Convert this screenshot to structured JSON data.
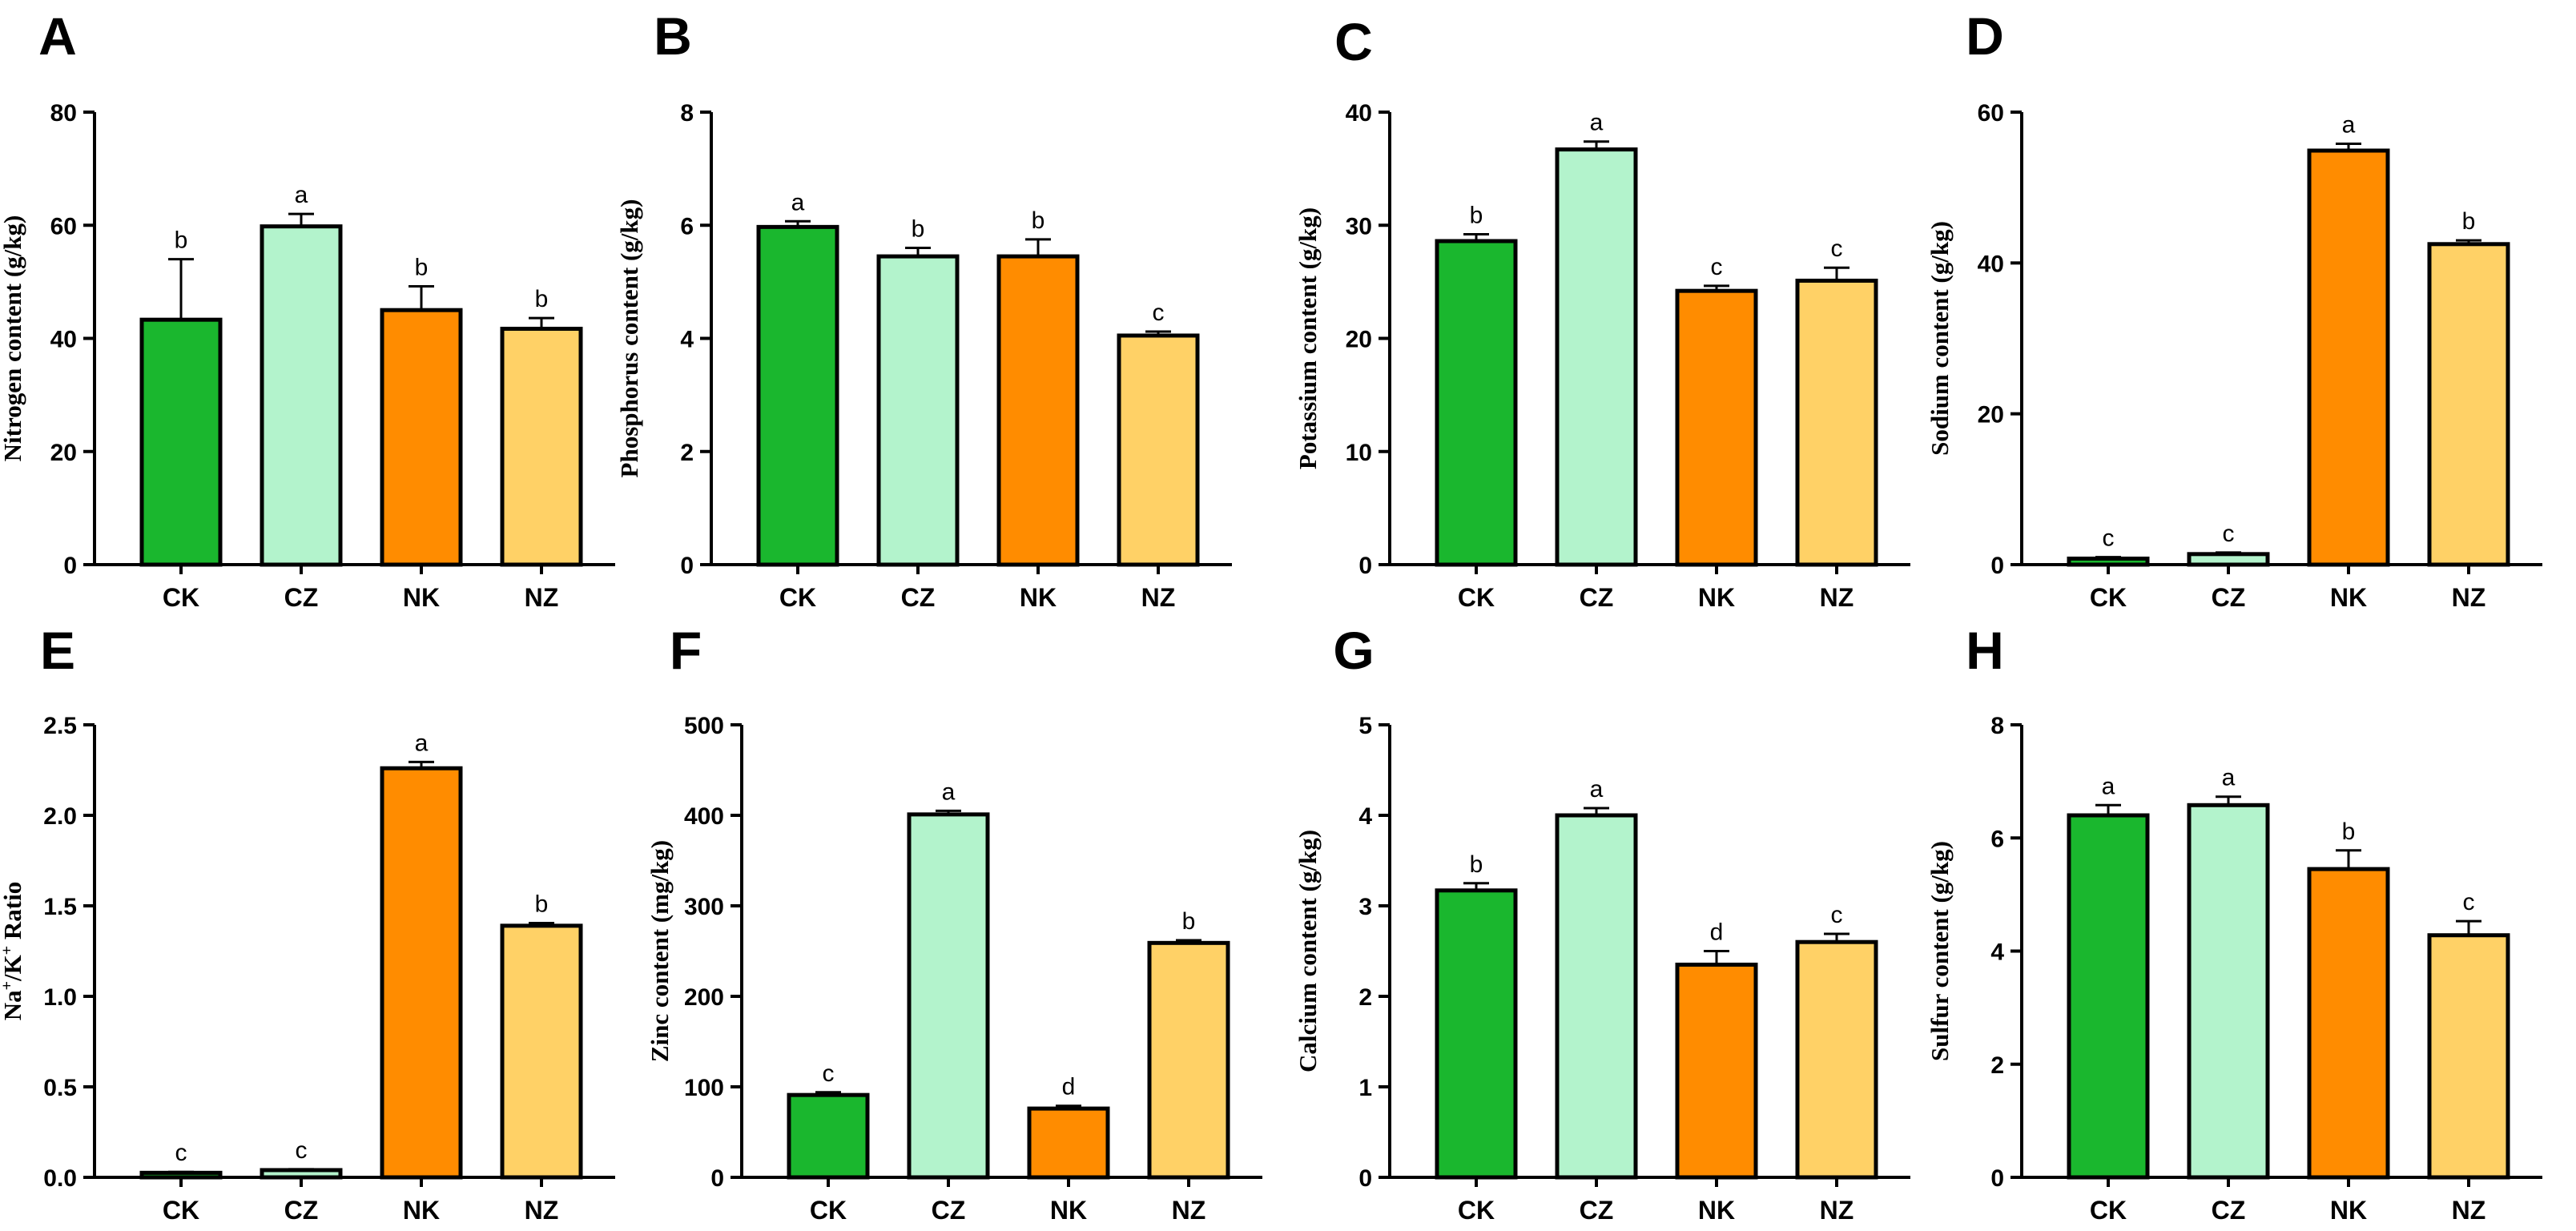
{
  "colors": {
    "CK": "#1ab72e",
    "CZ": "#b3f3cc",
    "NK": "#ff8c00",
    "NZ": "#ffd166",
    "outline": "#000000"
  },
  "chart_data": [
    {
      "type": "bar",
      "panel": "A",
      "categories": [
        "CK",
        "CZ",
        "NK",
        "NZ"
      ],
      "values": [
        43.3,
        59.8,
        45.0,
        41.7
      ],
      "errors": [
        10.7,
        2.2,
        4.2,
        1.9
      ],
      "significance": [
        "b",
        "a",
        "b",
        "b"
      ],
      "ylabel": "Nitrogen content (g/kg)",
      "ylim": [
        0,
        80
      ],
      "yticks": [
        "0",
        "20",
        "40",
        "60",
        "80"
      ]
    },
    {
      "type": "bar",
      "panel": "B",
      "categories": [
        "CK",
        "CZ",
        "NK",
        "NZ"
      ],
      "values": [
        5.97,
        5.45,
        5.45,
        4.05
      ],
      "errors": [
        0.1,
        0.15,
        0.3,
        0.07
      ],
      "significance": [
        "a",
        "b",
        "b",
        "c"
      ],
      "ylabel": "Phosphorus content (g/kg)",
      "ylim": [
        0,
        8
      ],
      "yticks": [
        "0",
        "2",
        "4",
        "6",
        "8"
      ]
    },
    {
      "type": "bar",
      "panel": "C",
      "categories": [
        "CK",
        "CZ",
        "NK",
        "NZ"
      ],
      "values": [
        28.6,
        36.7,
        24.2,
        25.1
      ],
      "errors": [
        0.6,
        0.7,
        0.45,
        1.15
      ],
      "significance": [
        "b",
        "a",
        "c",
        "c"
      ],
      "ylabel": "Potassium content (g/kg)",
      "ylim": [
        0,
        40
      ],
      "yticks": [
        "0",
        "10",
        "20",
        "30",
        "40"
      ]
    },
    {
      "type": "bar",
      "panel": "D",
      "categories": [
        "CK",
        "CZ",
        "NK",
        "NZ"
      ],
      "values": [
        0.8,
        1.4,
        54.9,
        42.5
      ],
      "errors": [
        0.2,
        0.2,
        0.9,
        0.5
      ],
      "significance": [
        "c",
        "c",
        "a",
        "b"
      ],
      "ylabel": "Sodium content (g/kg)",
      "ylim": [
        0,
        60
      ],
      "yticks": [
        "0",
        "20",
        "40",
        "60"
      ]
    },
    {
      "type": "bar",
      "panel": "E",
      "categories": [
        "CK",
        "CZ",
        "NK",
        "NZ"
      ],
      "values": [
        0.025,
        0.04,
        2.26,
        1.39
      ],
      "errors": [
        0.005,
        0.005,
        0.035,
        0.015
      ],
      "significance": [
        "c",
        "c",
        "a",
        "b"
      ],
      "ylabel_base": "Na",
      "ylabel_sup1": "+",
      "ylabel_mid": "/K",
      "ylabel_sup2": "+",
      "ylabel_tail": " Ratio",
      "ylim": [
        0,
        2.5
      ],
      "yticks": [
        "0.0",
        "0.5",
        "1.0",
        "1.5",
        "2.0",
        "2.5"
      ]
    },
    {
      "type": "bar",
      "panel": "F",
      "categories": [
        "CK",
        "CZ",
        "NK",
        "NZ"
      ],
      "values": [
        91,
        401,
        76,
        259
      ],
      "errors": [
        3,
        4,
        3,
        3
      ],
      "significance": [
        "c",
        "a",
        "d",
        "b"
      ],
      "ylabel": "Zinc content (mg/kg)",
      "ylim": [
        0,
        500
      ],
      "yticks": [
        "0",
        "100",
        "200",
        "300",
        "400",
        "500"
      ]
    },
    {
      "type": "bar",
      "panel": "G",
      "categories": [
        "CK",
        "CZ",
        "NK",
        "NZ"
      ],
      "values": [
        3.17,
        4.0,
        2.35,
        2.6
      ],
      "errors": [
        0.08,
        0.08,
        0.15,
        0.09
      ],
      "significance": [
        "b",
        "a",
        "d",
        "c"
      ],
      "ylabel": "Calcium content (g/kg)",
      "ylim": [
        0,
        5
      ],
      "yticks": [
        "0",
        "1",
        "2",
        "3",
        "4",
        "5"
      ]
    },
    {
      "type": "bar",
      "panel": "H",
      "categories": [
        "CK",
        "CZ",
        "NK",
        "NZ"
      ],
      "values": [
        6.4,
        6.58,
        5.45,
        4.28
      ],
      "errors": [
        0.18,
        0.15,
        0.33,
        0.25
      ],
      "significance": [
        "a",
        "a",
        "b",
        "c"
      ],
      "ylabel": "Sulfur content (g/kg)",
      "ylim": [
        0,
        8
      ],
      "yticks": [
        "0",
        "2",
        "4",
        "6",
        "8"
      ]
    }
  ]
}
